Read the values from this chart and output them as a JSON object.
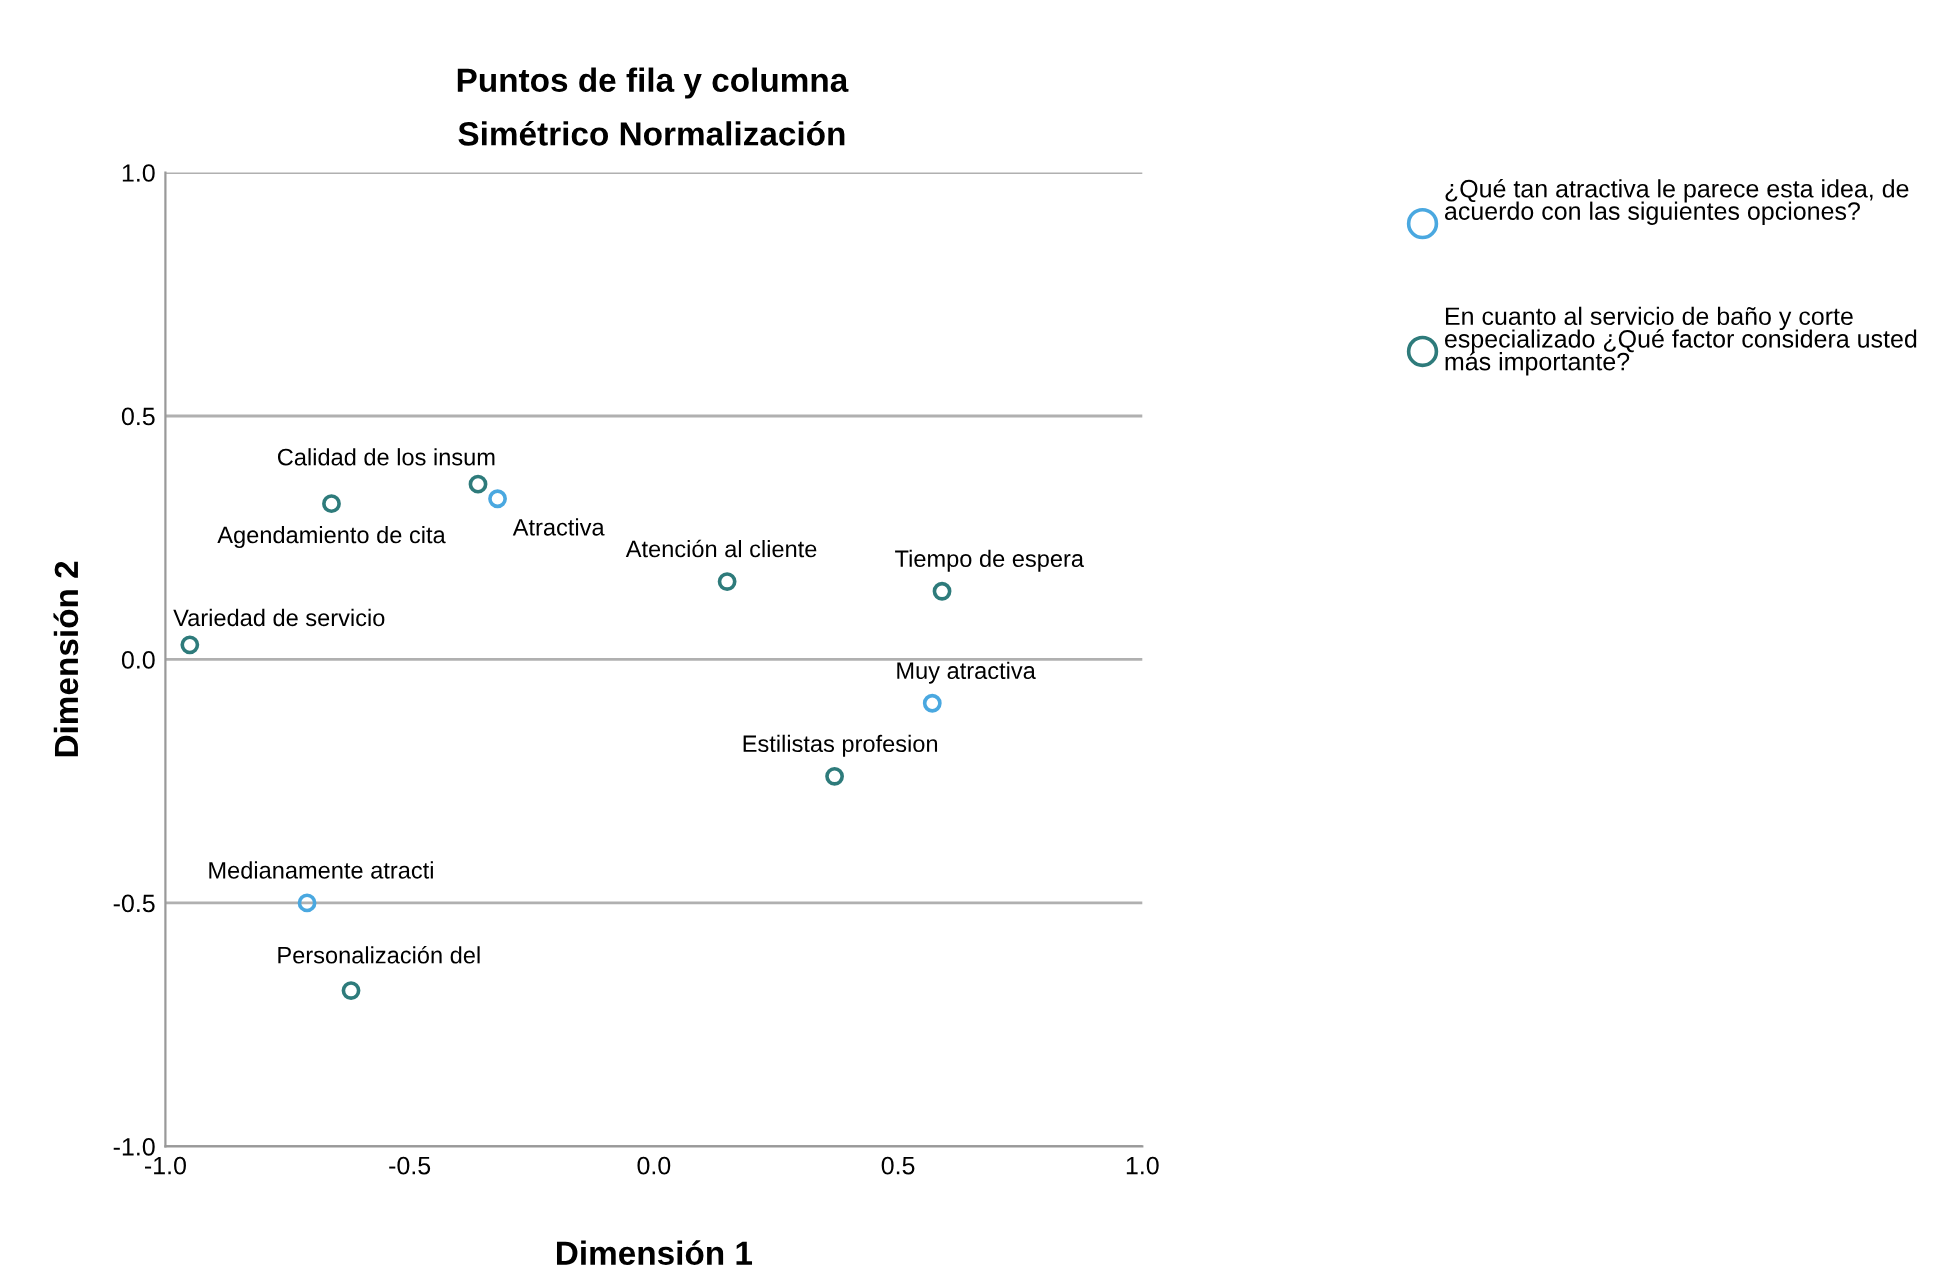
{
  "chart_data": {
    "type": "scatter",
    "title": "Puntos de fila y columna",
    "subtitle": "Simétrico Normalización",
    "xlabel": "Dimensión 1",
    "ylabel": "Dimensión 2",
    "xlim": [
      -1.0,
      1.0
    ],
    "ylim": [
      -1.0,
      1.0
    ],
    "xticks": [
      {
        "value": -1.0,
        "label": "-1.0"
      },
      {
        "value": -0.5,
        "label": "-0.5"
      },
      {
        "value": 0.0,
        "label": "0.0"
      },
      {
        "value": 0.5,
        "label": "0.5"
      },
      {
        "value": 1.0,
        "label": "1.0"
      }
    ],
    "yticks": [
      {
        "value": -1.0,
        "label": "-1.0"
      },
      {
        "value": -0.5,
        "label": "-0.5"
      },
      {
        "value": 0.0,
        "label": "0.0"
      },
      {
        "value": 0.5,
        "label": "0.5"
      },
      {
        "value": 1.0,
        "label": "1.0"
      }
    ],
    "grid": "y",
    "legend": "right",
    "marker": "circle",
    "series": [
      {
        "name": "¿Qué tan atractiva le parece esta idea, de acuerdo con las siguientes opciones?",
        "color": "#4aa8e0",
        "x": [
          -0.32,
          0.57,
          -0.71
        ],
        "values": [
          0.33,
          -0.09,
          -0.5
        ]
      },
      {
        "name": "En cuanto al servicio de baño y corte especializado ¿Qué factor considera usted más importante?",
        "color": "#2e7b7b",
        "x": [
          -0.36,
          -0.66,
          -0.95,
          0.15,
          0.59,
          0.37,
          -0.62
        ],
        "values": [
          0.36,
          0.32,
          0.03,
          0.16,
          0.14,
          -0.24,
          -0.68
        ]
      }
    ],
    "annotations": [
      {
        "text": "Atractiva",
        "x": -0.32,
        "y": 0.33
      },
      {
        "text": "Muy atractiva",
        "x": 0.57,
        "y": -0.09
      },
      {
        "text": "Medianamente atracti",
        "x": -0.71,
        "y": -0.5
      },
      {
        "text": "Calidad de los insum",
        "x": -0.36,
        "y": 0.36
      },
      {
        "text": "Agendamiento de cita",
        "x": -0.66,
        "y": 0.32
      },
      {
        "text": "Variedad de servicio",
        "x": -0.95,
        "y": 0.03
      },
      {
        "text": "Atención al cliente",
        "x": 0.15,
        "y": 0.16
      },
      {
        "text": "Tiempo de espera",
        "x": 0.59,
        "y": 0.14
      },
      {
        "text": "Estilistas profesion",
        "x": 0.37,
        "y": -0.24
      },
      {
        "text": "Personalización del",
        "x": -0.62,
        "y": -0.68
      }
    ]
  }
}
